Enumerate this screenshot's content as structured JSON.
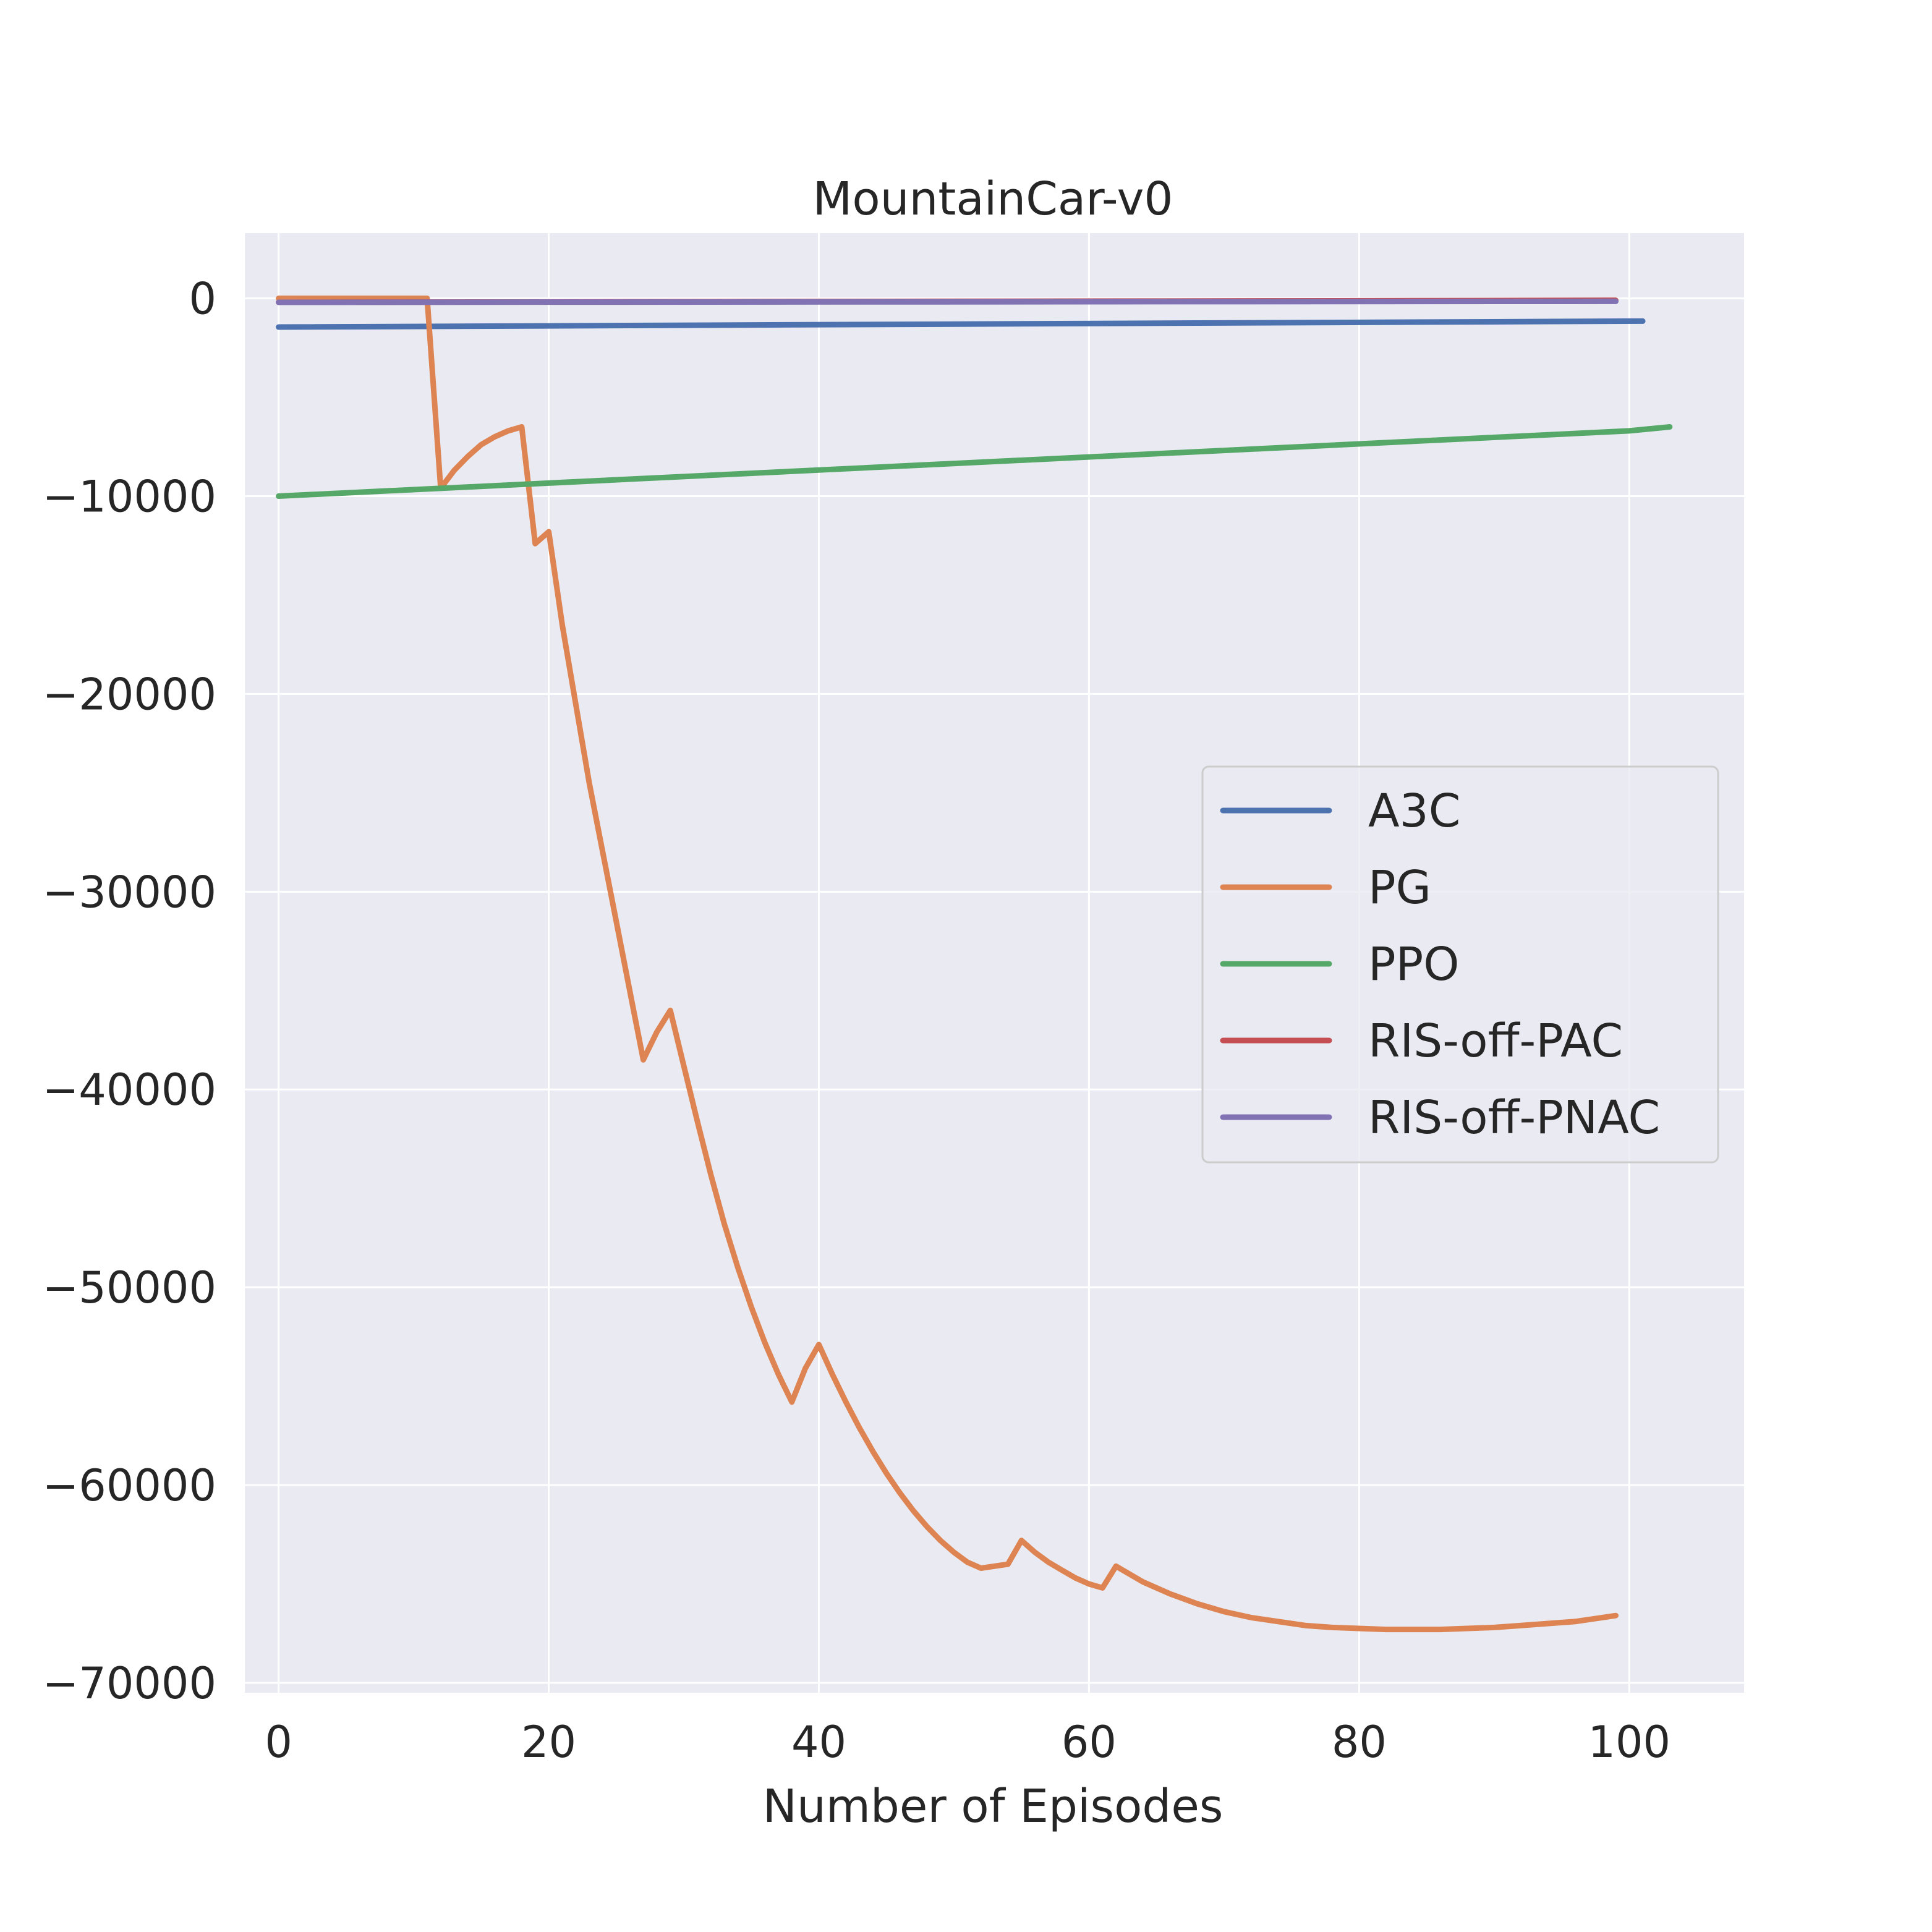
{
  "chart_data": {
    "type": "line",
    "title": "MountainCar-v0",
    "xlabel": "Number of Episodes",
    "ylabel": "",
    "xlim": [
      -2.5,
      108.5
    ],
    "ylim": [
      -70500,
      3300
    ],
    "xticks": [
      0,
      20,
      40,
      60,
      80,
      100
    ],
    "xtick_labels": [
      "0",
      "20",
      "40",
      "60",
      "80",
      "100"
    ],
    "yticks": [
      0,
      -10000,
      -20000,
      -30000,
      -40000,
      -50000,
      -60000,
      -70000
    ],
    "ytick_labels": [
      "0",
      "−10000",
      "−20000",
      "−30000",
      "−40000",
      "−50000",
      "−60000",
      "−70000"
    ],
    "grid": true,
    "legend": {
      "position": "center-right"
    },
    "series": [
      {
        "name": "A3C",
        "color": "#4c72b0",
        "x": [
          0,
          101
        ],
        "y": [
          -1450,
          -1150
        ]
      },
      {
        "name": "PG",
        "color": "#dd8452",
        "x": [
          0,
          11,
          12,
          13,
          14,
          15,
          16,
          17,
          18,
          19,
          20,
          21,
          22,
          23,
          24,
          25,
          26,
          27,
          28,
          29,
          30,
          31,
          32,
          33,
          34,
          35,
          36,
          37,
          38,
          39,
          40,
          41,
          42,
          43,
          44,
          45,
          46,
          47,
          48,
          49,
          50,
          51,
          52,
          53,
          54,
          55,
          56,
          57,
          58,
          59,
          60,
          61,
          62,
          64,
          66,
          68,
          70,
          72,
          74,
          76,
          78,
          80,
          82,
          84,
          85,
          86,
          88,
          90,
          92,
          94,
          96,
          98,
          99
        ],
        "y": [
          0,
          0,
          -9600,
          -8700,
          -8000,
          -7400,
          -7000,
          -6700,
          -6500,
          -12400,
          -11800,
          -16500,
          -20500,
          -24500,
          -28000,
          -31500,
          -35000,
          -38500,
          -37100,
          -36000,
          -38800,
          -41600,
          -44300,
          -46800,
          -49000,
          -51000,
          -52800,
          -54400,
          -55800,
          -54100,
          -52900,
          -54400,
          -55800,
          -57100,
          -58300,
          -59400,
          -60400,
          -61300,
          -62100,
          -62800,
          -63400,
          -63900,
          -64200,
          -64100,
          -64000,
          -62800,
          -63400,
          -63900,
          -64300,
          -64700,
          -65000,
          -65200,
          -64100,
          -64900,
          -65500,
          -66000,
          -66400,
          -66700,
          -66900,
          -67100,
          -67200,
          -67250,
          -67300,
          -67300,
          -67300,
          -67300,
          -67250,
          -67200,
          -67100,
          -67000,
          -66900,
          -66700,
          -66600
        ]
      },
      {
        "name": "PPO",
        "color": "#55a868",
        "x": [
          0,
          100,
          103
        ],
        "y": [
          -10000,
          -6700,
          -6500
        ]
      },
      {
        "name": "RIS-off-PAC",
        "color": "#c44e52",
        "x": [
          0,
          99
        ],
        "y": [
          -200,
          -100
        ]
      },
      {
        "name": "RIS-off-PNAC",
        "color": "#8172b3",
        "x": [
          0,
          99
        ],
        "y": [
          -200,
          -150
        ]
      }
    ]
  }
}
